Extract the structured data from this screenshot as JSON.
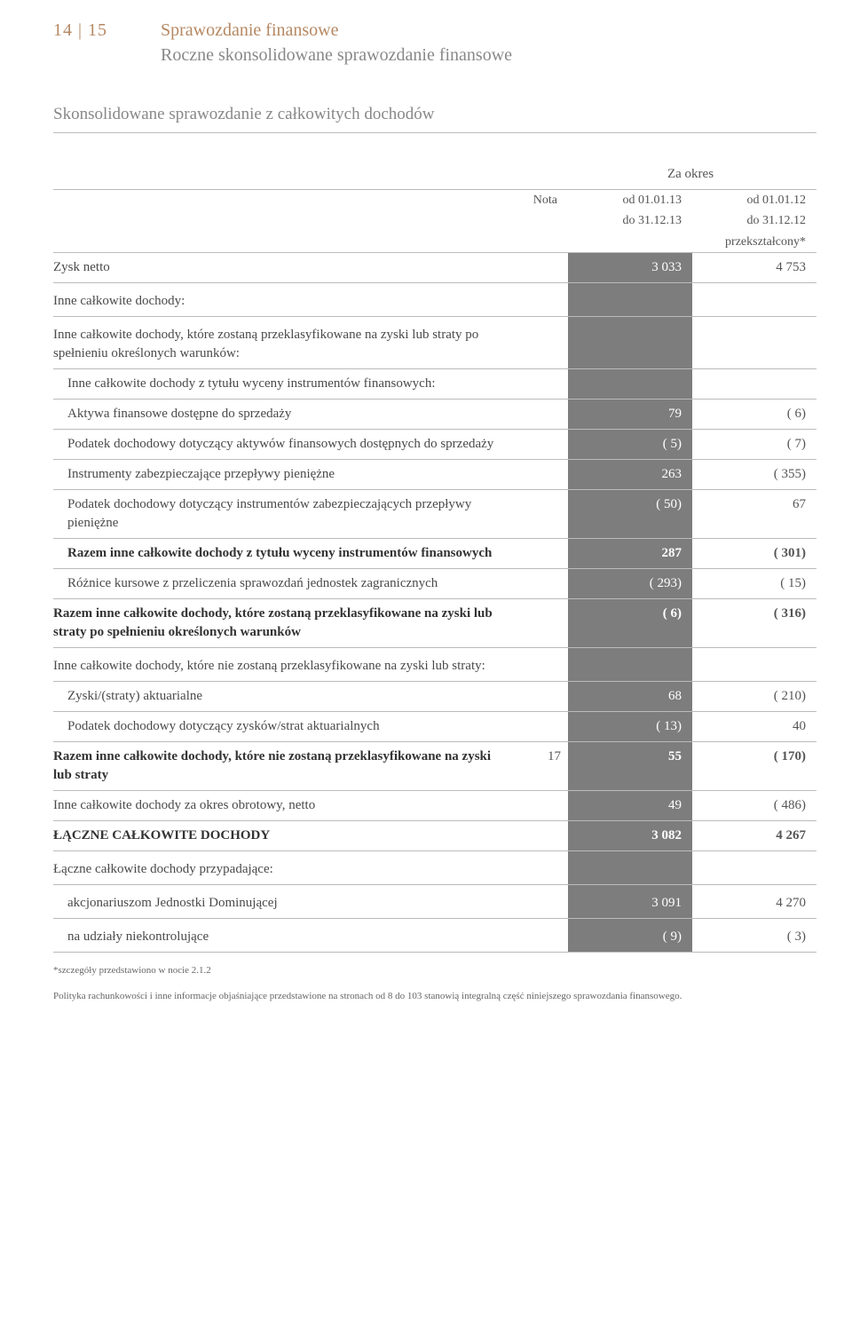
{
  "header": {
    "page_num": "14 | 15",
    "title1": "Sprawozdanie finansowe",
    "title2": "Roczne skonsolidowane sprawozdanie finansowe"
  },
  "statement_title": "Skonsolidowane sprawozdanie z całkowitych dochodów",
  "period_label": "Za okres",
  "col_headers": {
    "nota": "Nota",
    "p1_l1": "od 01.01.13",
    "p1_l2": "do 31.12.13",
    "p2_l1": "od 01.01.12",
    "p2_l2": "do 31.12.12",
    "p2_l3": "przekształcony*"
  },
  "rows": [
    {
      "label": "Zysk netto",
      "nota": "",
      "v1": "3 033",
      "v2": "4 753",
      "bold": false,
      "indent": 0,
      "gray": true,
      "br": true
    },
    {
      "label": "Inne całkowite dochody:",
      "nota": "",
      "v1": "",
      "v2": "",
      "bold": false,
      "indent": 0,
      "gray": true,
      "br": true,
      "section": true
    },
    {
      "label": "Inne całkowite dochody, które zostaną przeklasyfikowane na zyski lub straty po spełnieniu określonych warunków:",
      "nota": "",
      "v1": "",
      "v2": "",
      "bold": false,
      "indent": 0,
      "gray": true,
      "br": true,
      "section": true
    },
    {
      "label": "Inne całkowite dochody z tytułu wyceny instrumentów finansowych:",
      "nota": "",
      "v1": "",
      "v2": "",
      "bold": false,
      "indent": 1,
      "gray": true,
      "br": true
    },
    {
      "label": "Aktywa finansowe dostępne do sprzedaży",
      "nota": "",
      "v1": "79",
      "v2": "( 6)",
      "bold": false,
      "indent": 2,
      "gray": true,
      "br": true
    },
    {
      "label": "Podatek dochodowy dotyczący aktywów finansowych dostępnych do sprzedaży",
      "nota": "",
      "v1": "( 5)",
      "v2": "( 7)",
      "bold": false,
      "indent": 2,
      "gray": true,
      "br": true
    },
    {
      "label": "Instrumenty zabezpieczające przepływy pieniężne",
      "nota": "",
      "v1": "263",
      "v2": "( 355)",
      "bold": false,
      "indent": 2,
      "gray": true,
      "br": true
    },
    {
      "label": "Podatek dochodowy dotyczący instrumentów zabezpieczających przepływy pieniężne",
      "nota": "",
      "v1": "( 50)",
      "v2": "67",
      "bold": false,
      "indent": 2,
      "gray": true,
      "br": true
    },
    {
      "label": "Razem inne całkowite dochody z tytułu wyceny instrumentów finansowych",
      "nota": "",
      "v1": "287",
      "v2": "( 301)",
      "bold": true,
      "indent": 1,
      "gray": true,
      "br": true
    },
    {
      "label": "Różnice kursowe z przeliczenia sprawozdań jednostek zagranicznych",
      "nota": "",
      "v1": "( 293)",
      "v2": "( 15)",
      "bold": false,
      "indent": 1,
      "gray": true,
      "br": true
    },
    {
      "label": "Razem inne całkowite dochody, które zostaną przeklasyfikowane na zyski lub straty po spełnieniu określonych warunków",
      "nota": "",
      "v1": "( 6)",
      "v2": "( 316)",
      "bold": true,
      "indent": 0,
      "gray": true,
      "br": true
    },
    {
      "label": "Inne całkowite dochody, które nie zostaną przeklasyfikowane na zyski lub straty:",
      "nota": "",
      "v1": "",
      "v2": "",
      "bold": false,
      "indent": 0,
      "gray": true,
      "br": true,
      "section": true
    },
    {
      "label": "Zyski/(straty) aktuarialne",
      "nota": "",
      "v1": "68",
      "v2": "( 210)",
      "bold": false,
      "indent": 1,
      "gray": true,
      "br": true
    },
    {
      "label": "Podatek dochodowy dotyczący zysków/strat aktuarialnych",
      "nota": "",
      "v1": "( 13)",
      "v2": "40",
      "bold": false,
      "indent": 1,
      "gray": true,
      "br": true
    },
    {
      "label": "Razem inne całkowite dochody, które nie zostaną przeklasyfikowane na zyski lub straty",
      "nota": "17",
      "v1": "55",
      "v2": "( 170)",
      "bold": true,
      "indent": 0,
      "gray": true,
      "br": true
    },
    {
      "label": "Inne całkowite dochody za okres obrotowy, netto",
      "nota": "",
      "v1": "49",
      "v2": "( 486)",
      "bold": false,
      "indent": 0,
      "gray": true,
      "br": true
    },
    {
      "label": "ŁĄCZNE CAŁKOWITE DOCHODY",
      "nota": "",
      "v1": "3 082",
      "v2": "4 267",
      "bold": true,
      "indent": 0,
      "gray": true,
      "br": true
    },
    {
      "label": "Łączne całkowite dochody przypadające:",
      "nota": "",
      "v1": "",
      "v2": "",
      "bold": false,
      "indent": 0,
      "gray": true,
      "br": true,
      "section": true
    },
    {
      "label": "akcjonariuszom Jednostki Dominującej",
      "nota": "",
      "v1": "3 091",
      "v2": "4 270",
      "bold": false,
      "indent": 1,
      "gray": true,
      "br": true,
      "section": true
    },
    {
      "label": "na udziały niekontrolujące",
      "nota": "",
      "v1": "( 9)",
      "v2": "( 3)",
      "bold": false,
      "indent": 1,
      "gray": true,
      "br": true,
      "section": true
    }
  ],
  "footnotes": [
    "*szczegóły przedstawiono w nocie 2.1.2",
    "Polityka rachunkowości i inne informacje objaśniające przedstawione na stronach od 8 do 103 stanowią integralną część niniejszego sprawozdania finansowego."
  ]
}
